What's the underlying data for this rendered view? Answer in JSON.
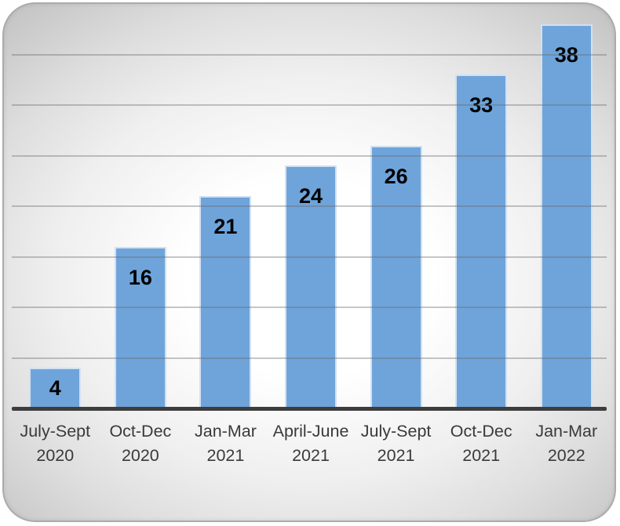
{
  "chart_data": {
    "type": "bar",
    "title": "",
    "xlabel": "",
    "ylabel": "",
    "categories": [
      "July-Sept 2020",
      "Oct-Dec 2020",
      "Jan-Mar 2021",
      "April-June 2021",
      "July-Sept 2021",
      "Oct-Dec 2021",
      "Jan-Mar 2022"
    ],
    "category_lines": [
      [
        "July-Sept",
        "2020"
      ],
      [
        "Oct-Dec",
        "2020"
      ],
      [
        "Jan-Mar",
        "2021"
      ],
      [
        "April-June",
        "2021"
      ],
      [
        "July-Sept",
        "2021"
      ],
      [
        "Oct-Dec",
        "2021"
      ],
      [
        "Jan-Mar",
        "2022"
      ]
    ],
    "values": [
      4,
      16,
      21,
      24,
      26,
      33,
      38
    ],
    "data_labels": [
      4,
      16,
      21,
      24,
      26,
      33,
      38
    ],
    "data_label_position": "inside-end",
    "ylim": [
      0,
      40
    ],
    "y_axis_labels_visible": false,
    "gridlines": {
      "visible": true,
      "interval": 5,
      "values": [
        5,
        10,
        15,
        20,
        25,
        30,
        35
      ]
    },
    "legend": "none",
    "colors": {
      "bar_fill": "#6fa4da",
      "bar_border": "#d2e1f2",
      "axis_line": "#3d3d3d",
      "gridline": "rgba(105,105,105,0.38)",
      "value_label_text": "#000000",
      "category_label_text": "#3a3a3a",
      "panel_edge": "#ababab",
      "panel_center": "#ffffff",
      "panel_corner": "#c6c6c6"
    }
  }
}
